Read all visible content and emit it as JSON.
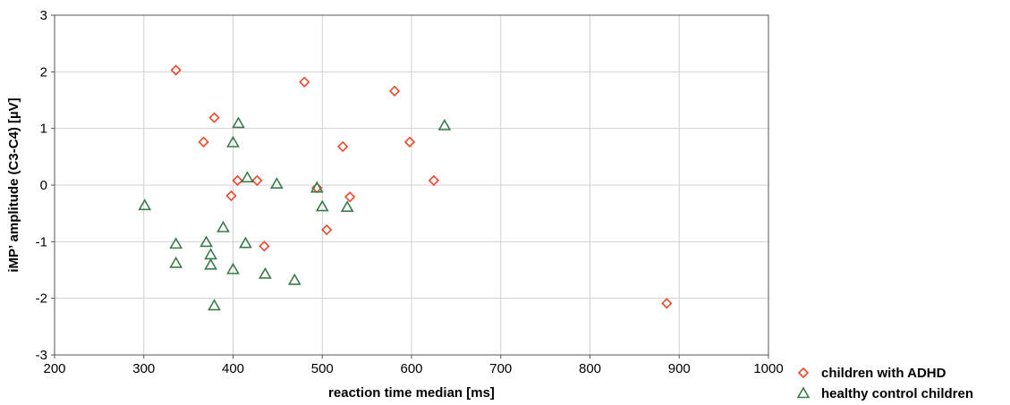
{
  "chart_data": {
    "type": "scatter",
    "title": "",
    "xlabel": "reaction time median [ms]",
    "ylabel": "iMP’ amplitude (C3-C4) [µV]",
    "xlim": [
      200,
      1000
    ],
    "ylim": [
      -3,
      3
    ],
    "xticks": [
      200,
      300,
      400,
      500,
      600,
      700,
      800,
      900,
      1000
    ],
    "yticks": [
      -3,
      -2,
      -1,
      0,
      1,
      2,
      3
    ],
    "grid": true,
    "legend_position": "bottom-right, outside plot",
    "series": [
      {
        "name": "children with ADHD",
        "marker": "diamond",
        "color": "#e8472a",
        "points": [
          [
            336,
            2.03
          ],
          [
            480,
            1.82
          ],
          [
            581,
            1.66
          ],
          [
            379,
            1.19
          ],
          [
            367,
            0.76
          ],
          [
            598,
            0.76
          ],
          [
            523,
            0.68
          ],
          [
            405,
            0.08
          ],
          [
            427,
            0.08
          ],
          [
            625,
            0.08
          ],
          [
            398,
            -0.19
          ],
          [
            494,
            -0.05
          ],
          [
            531,
            -0.21
          ],
          [
            435,
            -1.08
          ],
          [
            505,
            -0.79
          ],
          [
            886,
            -2.09
          ]
        ]
      },
      {
        "name": "healthy control children",
        "marker": "triangle",
        "color": "#3a7a4a",
        "points": [
          [
            637,
            1.05
          ],
          [
            406,
            1.09
          ],
          [
            400,
            0.75
          ],
          [
            416,
            0.13
          ],
          [
            449,
            0.02
          ],
          [
            494,
            -0.05
          ],
          [
            500,
            -0.38
          ],
          [
            528,
            -0.39
          ],
          [
            301,
            -0.36
          ],
          [
            389,
            -0.75
          ],
          [
            336,
            -1.04
          ],
          [
            370,
            -1.01
          ],
          [
            375,
            -1.23
          ],
          [
            414,
            -1.03
          ],
          [
            336,
            -1.38
          ],
          [
            375,
            -1.41
          ],
          [
            400,
            -1.49
          ],
          [
            436,
            -1.57
          ],
          [
            469,
            -1.68
          ],
          [
            379,
            -2.13
          ]
        ]
      }
    ]
  },
  "legend": {
    "items": [
      {
        "label": "children with ADHD",
        "marker": "diamond",
        "color": "#e8472a"
      },
      {
        "label": "healthy control children",
        "marker": "triangle",
        "color": "#3a7a4a"
      }
    ]
  }
}
